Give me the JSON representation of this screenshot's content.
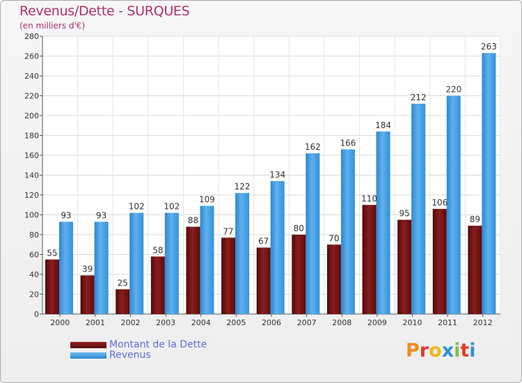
{
  "title": "Revenus/Dette - SURQUES",
  "subtitle": "(en milliers d'€)",
  "legend": {
    "debt_label": "Montant de la Dette",
    "revenue_label": "Revenus"
  },
  "logo": {
    "text": "Proxiti"
  },
  "colors": {
    "debt": "#7a1414",
    "revenue": "#4aa3e6",
    "title": "#b0306a",
    "legend_text": "#5a6fd6"
  },
  "chart_data": {
    "type": "bar",
    "categories": [
      "2000",
      "2001",
      "2002",
      "2003",
      "2004",
      "2005",
      "2006",
      "2007",
      "2008",
      "2009",
      "2010",
      "2011",
      "2012"
    ],
    "series": [
      {
        "name": "Montant de la Dette",
        "values": [
          55,
          39,
          25,
          58,
          88,
          77,
          67,
          80,
          70,
          110,
          95,
          106,
          89
        ]
      },
      {
        "name": "Revenus",
        "values": [
          93,
          93,
          102,
          102,
          109,
          122,
          134,
          162,
          166,
          184,
          212,
          220,
          263
        ]
      }
    ],
    "ylim": [
      0,
      280
    ],
    "yticks": [
      0,
      20,
      40,
      60,
      80,
      100,
      120,
      140,
      160,
      180,
      200,
      220,
      240,
      260,
      280
    ],
    "grid": true,
    "legend_position": "bottom-left",
    "title": "Revenus/Dette - SURQUES",
    "xlabel": "",
    "ylabel": "(en milliers d'€)"
  }
}
